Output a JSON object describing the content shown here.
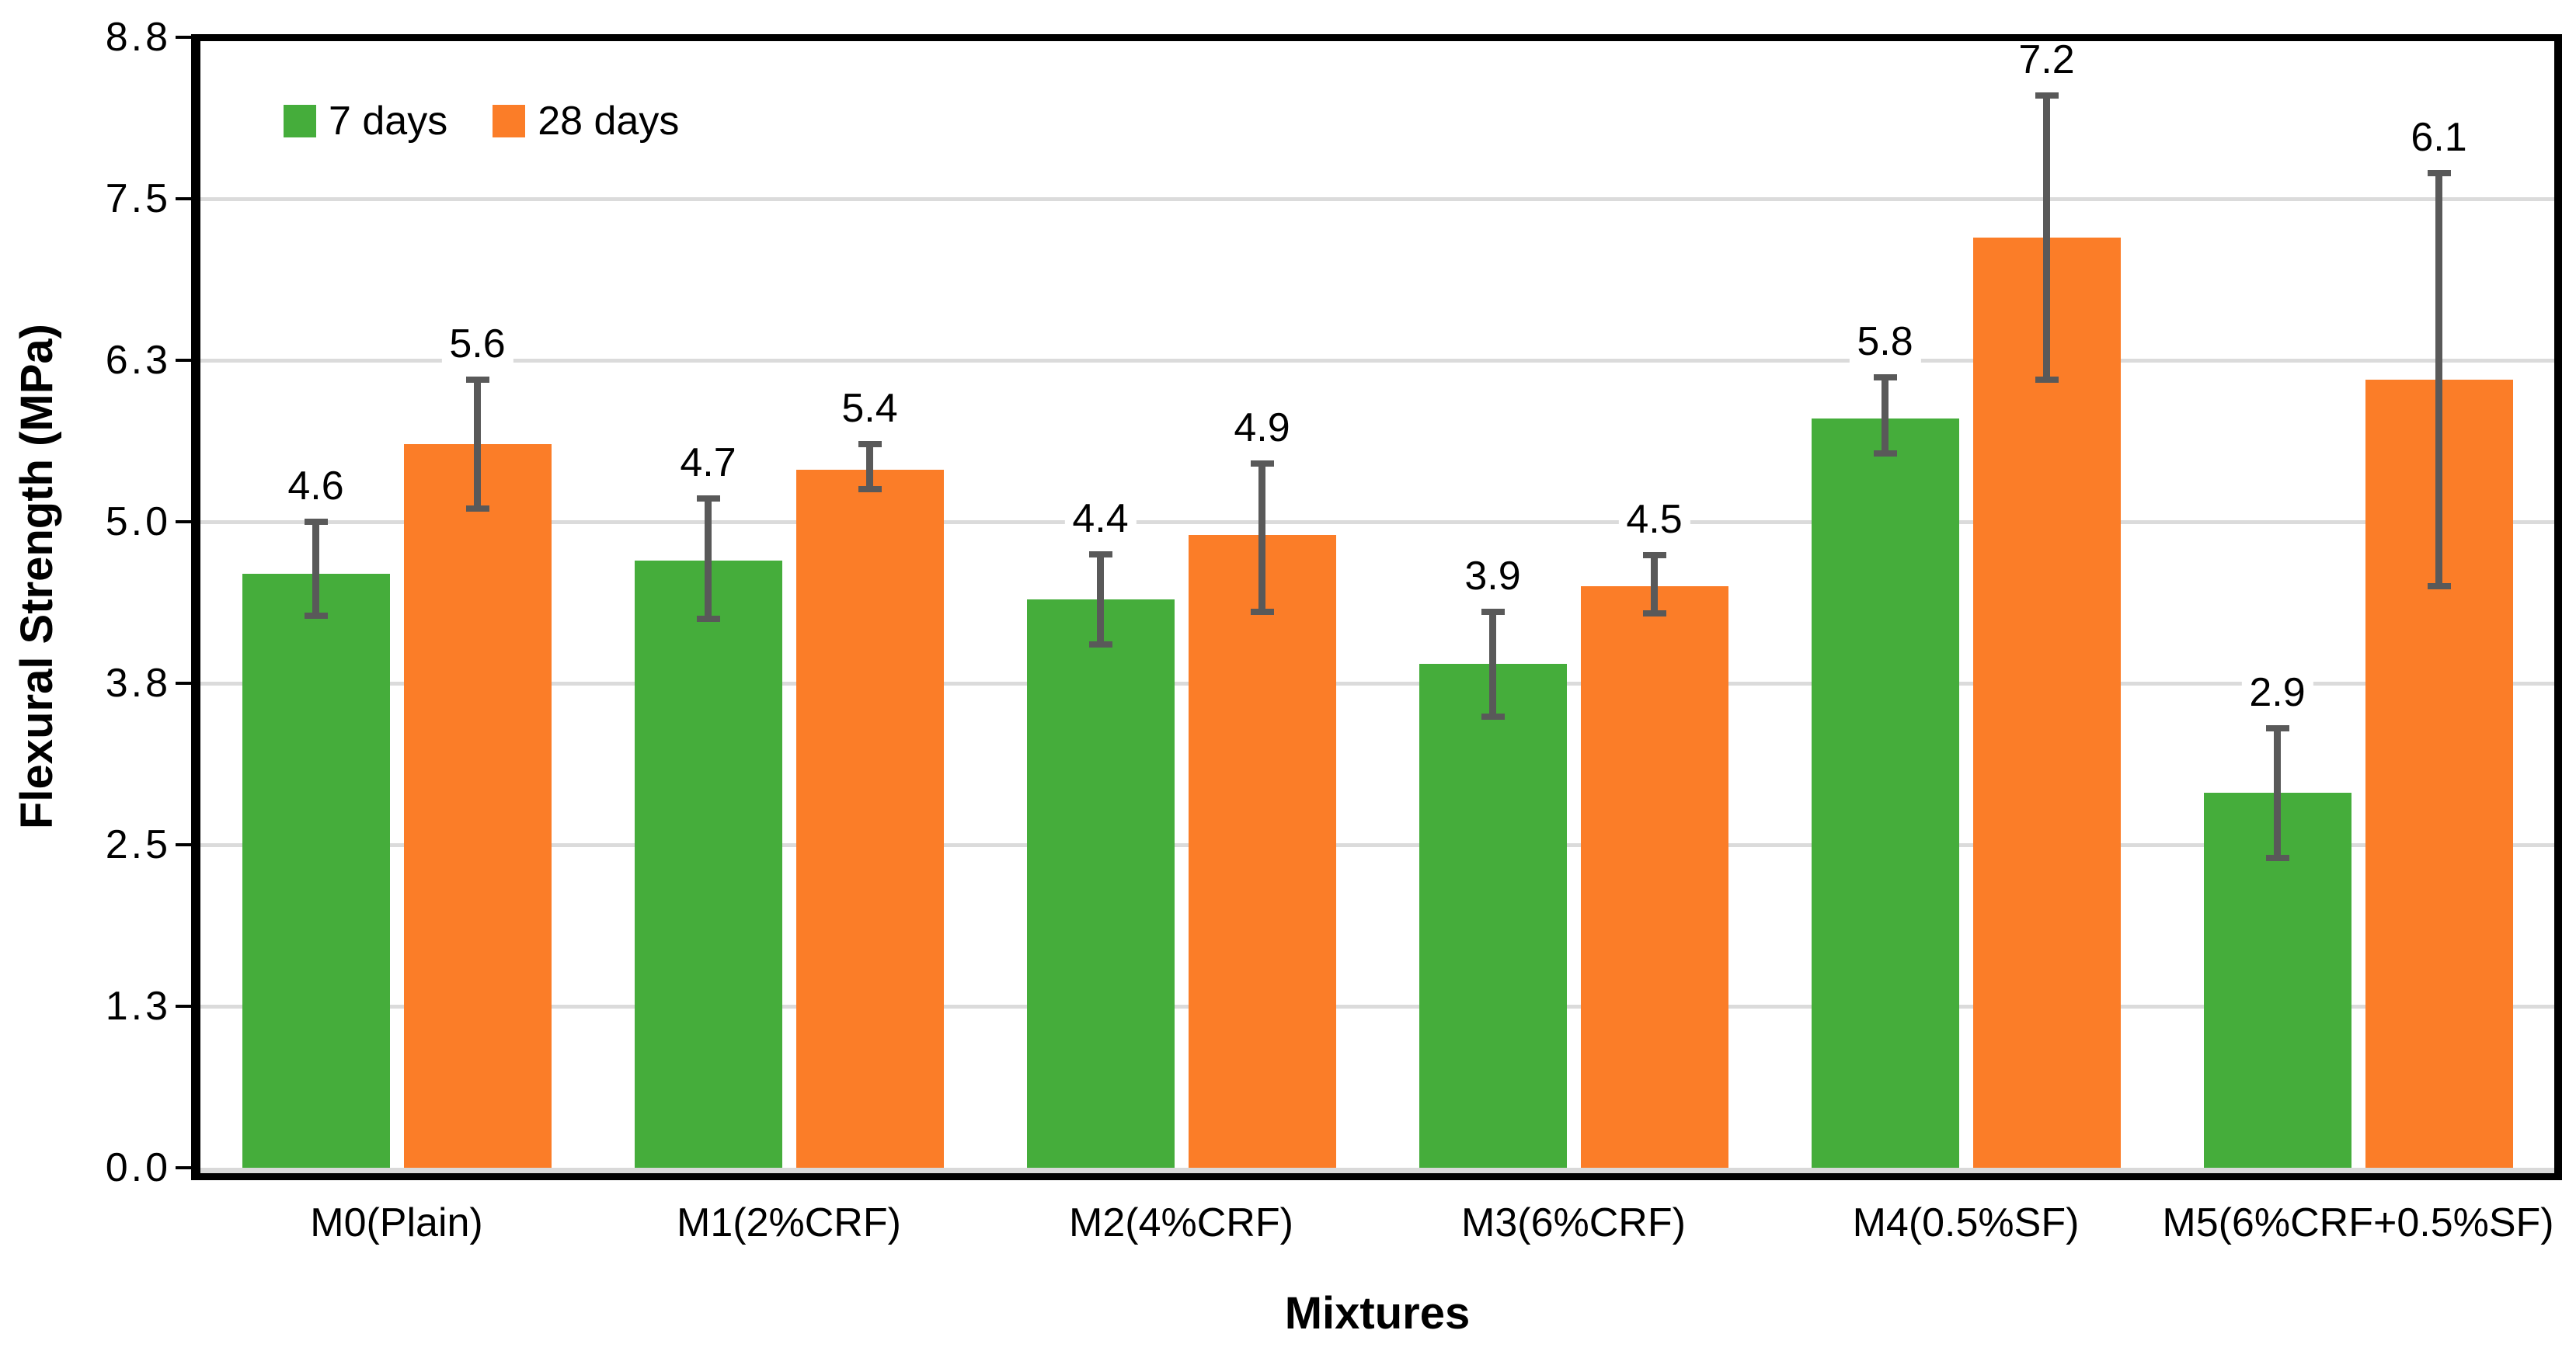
{
  "chart_data": {
    "type": "bar",
    "title": "",
    "xlabel": "Mixtures",
    "ylabel": "Flexural Strength (MPa)",
    "categories": [
      "M0(Plain)",
      "M1(2%CRF)",
      "M2(4%CRF)",
      "M3(6%CRF)",
      "M4(0.5%SF)",
      "M5(6%CRF+0.5%SF)"
    ],
    "series": [
      {
        "name": "7 days",
        "color": "#45AD3B",
        "values": [
          4.6,
          4.7,
          4.4,
          3.9,
          5.8,
          2.9
        ],
        "err_up": [
          0.4,
          0.48,
          0.35,
          0.4,
          0.32,
          0.5
        ],
        "err_down": [
          0.33,
          0.45,
          0.35,
          0.41,
          0.27,
          0.5
        ]
      },
      {
        "name": "28 days",
        "color": "#FB7D28",
        "values": [
          5.6,
          5.4,
          4.9,
          4.5,
          7.2,
          6.1
        ],
        "err_up": [
          0.5,
          0.2,
          0.55,
          0.24,
          1.1,
          1.6
        ],
        "err_down": [
          0.5,
          0.15,
          0.6,
          0.21,
          1.1,
          1.6
        ]
      }
    ],
    "ylim": [
      0,
      8.75
    ],
    "yticks": [
      {
        "label": "0.0",
        "value": 0
      },
      {
        "label": "1.3",
        "value": 1.25
      },
      {
        "label": "2.5",
        "value": 2.5
      },
      {
        "label": "3.8",
        "value": 3.75
      },
      {
        "label": "5.0",
        "value": 5.0
      },
      {
        "label": "6.3",
        "value": 6.25
      },
      {
        "label": "7.5",
        "value": 7.5
      },
      {
        "label": "8.8",
        "value": 8.75
      }
    ],
    "gridline_values": [
      1.25,
      2.5,
      3.75,
      5.0,
      6.25,
      7.5
    ],
    "grid": true,
    "legend_position": "top-left",
    "data_labels": true,
    "colors": {
      "grid": "#DBDBDB",
      "error_bar": "#595959",
      "axis_border": "#000000",
      "baseline_strip": "#D9D9D9",
      "text": "#000000",
      "background": "#FFFFFF"
    }
  }
}
